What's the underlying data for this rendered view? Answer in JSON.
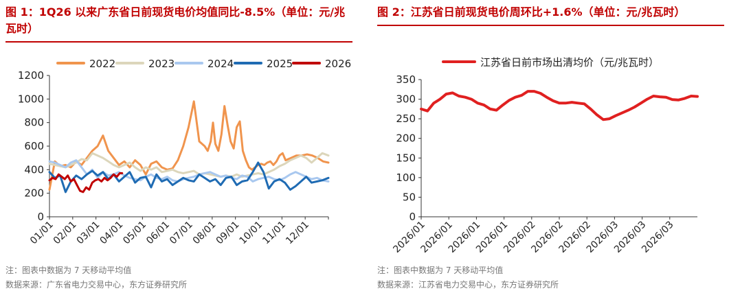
{
  "left": {
    "title": "图 1：1Q26 以来广东省日前现货电价均值同比-8.5%（单位：元/兆瓦时）",
    "note": "注：图表中数据为 7 天移动平均值",
    "source": "数据来源：广东省电力交易中心，东方证券研究所"
  },
  "right": {
    "title": "图 2：江苏省日前现货电价周环比+1.6%（单位：元/兆瓦时）",
    "note": "注：图表中数据为 7 天移动平均值",
    "source": "数据来源：江苏省电力交易中心，东方证券研究所"
  },
  "chart_data": [
    {
      "type": "line",
      "legend_position": "top",
      "grid": false,
      "ylim": [
        0,
        1200
      ],
      "yticks": [
        0,
        200,
        400,
        600,
        800,
        1000,
        1200
      ],
      "xticks": [
        "01/01",
        "02/01",
        "03/01",
        "04/01",
        "05/01",
        "06/01",
        "07/01",
        "08/01",
        "09/01",
        "10/01",
        "11/01",
        "12/01"
      ],
      "x_unit": "day of year",
      "xlim": [
        1,
        366
      ],
      "series": [
        {
          "name": "2022",
          "color": "#f0944d",
          "x": [
            1,
            8,
            15,
            22,
            29,
            36,
            43,
            50,
            57,
            64,
            71,
            78,
            85,
            92,
            99,
            106,
            113,
            120,
            127,
            134,
            141,
            148,
            155,
            162,
            169,
            176,
            183,
            190,
            197,
            204,
            208,
            212,
            215,
            218,
            222,
            226,
            230,
            234,
            238,
            242,
            246,
            250,
            254,
            258,
            262,
            266,
            270,
            274,
            278,
            282,
            286,
            290,
            294,
            298,
            302,
            306,
            310,
            317,
            324,
            331,
            338,
            345,
            352,
            359,
            366
          ],
          "values": [
            230,
            470,
            430,
            440,
            420,
            470,
            440,
            500,
            560,
            600,
            690,
            560,
            500,
            440,
            470,
            420,
            480,
            440,
            360,
            450,
            470,
            420,
            400,
            410,
            480,
            600,
            760,
            980,
            640,
            600,
            560,
            640,
            800,
            620,
            560,
            700,
            940,
            780,
            640,
            580,
            760,
            810,
            560,
            480,
            420,
            400,
            420,
            440,
            450,
            440,
            460,
            470,
            440,
            470,
            520,
            540,
            480,
            500,
            520,
            520,
            530,
            520,
            500,
            470,
            460
          ]
        },
        {
          "name": "2023",
          "color": "#dcd6bb",
          "x": [
            1,
            8,
            15,
            22,
            29,
            36,
            43,
            50,
            57,
            64,
            71,
            78,
            85,
            92,
            99,
            106,
            113,
            120,
            127,
            134,
            141,
            148,
            155,
            162,
            169,
            176,
            183,
            190,
            197,
            204,
            211,
            218,
            225,
            232,
            239,
            246,
            253,
            260,
            267,
            274,
            281,
            288,
            295,
            302,
            309,
            316,
            323,
            330,
            337,
            344,
            351,
            358,
            366
          ],
          "values": [
            450,
            440,
            430,
            420,
            440,
            460,
            490,
            480,
            540,
            520,
            500,
            470,
            440,
            420,
            440,
            460,
            420,
            390,
            420,
            400,
            420,
            380,
            390,
            400,
            380,
            370,
            380,
            390,
            360,
            370,
            360,
            350,
            340,
            350,
            340,
            360,
            340,
            350,
            360,
            370,
            360,
            380,
            400,
            430,
            450,
            480,
            500,
            520,
            500,
            460,
            500,
            540,
            520
          ]
        },
        {
          "name": "2024",
          "color": "#a9c8ef",
          "x": [
            1,
            8,
            15,
            22,
            29,
            36,
            43,
            50,
            57,
            64,
            71,
            78,
            85,
            92,
            99,
            106,
            113,
            120,
            127,
            134,
            141,
            148,
            155,
            162,
            169,
            176,
            183,
            190,
            197,
            204,
            211,
            218,
            225,
            232,
            239,
            246,
            253,
            260,
            267,
            274,
            281,
            288,
            295,
            302,
            309,
            316,
            323,
            330,
            337,
            344,
            351,
            358,
            366
          ],
          "values": [
            470,
            460,
            440,
            420,
            460,
            480,
            420,
            360,
            400,
            330,
            380,
            350,
            360,
            380,
            350,
            330,
            320,
            310,
            340,
            360,
            330,
            320,
            340,
            310,
            300,
            320,
            330,
            340,
            360,
            370,
            380,
            360,
            340,
            350,
            330,
            320,
            350,
            340,
            300,
            320,
            330,
            340,
            320,
            310,
            330,
            360,
            380,
            360,
            340,
            320,
            330,
            310,
            300
          ]
        },
        {
          "name": "2025",
          "color": "#1f6bb3",
          "x": [
            1,
            8,
            15,
            22,
            29,
            36,
            43,
            50,
            57,
            64,
            71,
            78,
            85,
            92,
            99,
            106,
            113,
            120,
            127,
            134,
            141,
            148,
            155,
            162,
            169,
            176,
            183,
            190,
            197,
            204,
            211,
            218,
            225,
            232,
            239,
            246,
            253,
            260,
            267,
            274,
            281,
            288,
            295,
            302,
            309,
            316,
            323,
            330,
            337,
            344,
            351,
            358,
            366
          ],
          "values": [
            380,
            330,
            350,
            210,
            300,
            350,
            320,
            360,
            390,
            350,
            380,
            320,
            360,
            300,
            340,
            380,
            290,
            330,
            340,
            250,
            360,
            300,
            320,
            270,
            300,
            330,
            310,
            300,
            360,
            330,
            300,
            320,
            270,
            330,
            340,
            270,
            300,
            310,
            380,
            460,
            380,
            240,
            300,
            320,
            290,
            230,
            260,
            300,
            340,
            290,
            300,
            310,
            330
          ]
        },
        {
          "name": "2026",
          "color": "#c00000",
          "x": [
            1,
            5,
            9,
            13,
            17,
            21,
            25,
            29,
            33,
            37,
            41,
            45,
            49,
            53,
            57,
            61,
            65,
            69,
            73,
            77,
            81,
            85,
            89,
            93,
            96
          ],
          "values": [
            310,
            330,
            320,
            360,
            340,
            320,
            350,
            300,
            320,
            270,
            220,
            210,
            250,
            230,
            290,
            310,
            320,
            300,
            330,
            310,
            330,
            360,
            340,
            370,
            370
          ]
        }
      ]
    },
    {
      "type": "line",
      "legend_position": "top",
      "grid": false,
      "ylim": [
        0,
        350
      ],
      "yticks": [
        0,
        50,
        100,
        150,
        200,
        250,
        300,
        350
      ],
      "xticks": [
        "2026/01",
        "2026/01",
        "2026/01",
        "2026/01",
        "2026/02",
        "2026/02",
        "2026/02",
        "2026/03",
        "2026/03",
        "2026/03"
      ],
      "x_unit": "day of 2026",
      "xlim": [
        1,
        89
      ],
      "series": [
        {
          "name": "江苏省日前市场出清均价（元/兆瓦时）",
          "color": "#e02020",
          "x": [
            1,
            3,
            5,
            7,
            9,
            11,
            13,
            15,
            17,
            19,
            21,
            23,
            25,
            27,
            29,
            31,
            33,
            35,
            37,
            39,
            41,
            43,
            45,
            47,
            49,
            51,
            53,
            55,
            57,
            59,
            61,
            63,
            65,
            67,
            69,
            71,
            73,
            75,
            77,
            79,
            81,
            83,
            85,
            87,
            89
          ],
          "values": [
            275,
            270,
            290,
            300,
            313,
            316,
            308,
            305,
            300,
            290,
            285,
            275,
            272,
            285,
            297,
            305,
            310,
            320,
            320,
            315,
            305,
            296,
            290,
            290,
            292,
            290,
            288,
            275,
            260,
            248,
            250,
            258,
            265,
            272,
            280,
            290,
            300,
            308,
            306,
            305,
            299,
            298,
            302,
            308,
            307
          ]
        }
      ]
    }
  ]
}
